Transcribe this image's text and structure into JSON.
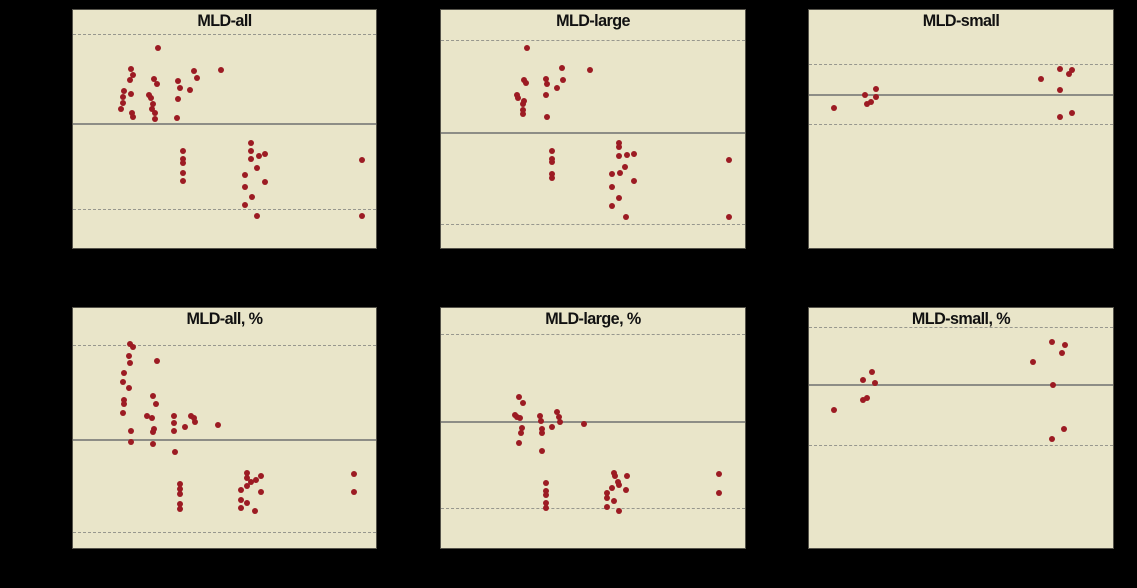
{
  "colors": {
    "canvas_bg": "#000000",
    "panel_bg": "#e9e5c9",
    "panel_border": "#55534a",
    "dot": "#9c1b23",
    "mean_line": "#8d8d86",
    "loa_line": "#97978e",
    "title_text": "#111111"
  },
  "chart_data": {
    "type": "scatter",
    "layout": "2 rows x 3 columns of Bland-Altman style panels",
    "legend": "none",
    "grid": "off",
    "axis_tick_labels_visible": false,
    "lines_meaning": {
      "solid": "mean line",
      "dashed": "upper/lower limit lines"
    },
    "panels": [
      {
        "title": "MLD-all",
        "upper_loa_y_pct": 10.1,
        "mean_y_pct": 47.6,
        "lower_loa_y_pct": 83.8,
        "points_pct": [
          [
            28.1,
            16.1
          ],
          [
            19.2,
            24.7
          ],
          [
            19.9,
            27.2
          ],
          [
            26.7,
            28.9
          ],
          [
            27.8,
            31.0
          ],
          [
            40.0,
            25.6
          ],
          [
            41.0,
            28.5
          ],
          [
            48.9,
            25.4
          ],
          [
            34.7,
            30.0
          ],
          [
            35.2,
            32.6
          ],
          [
            38.7,
            33.5
          ],
          [
            18.7,
            29.6
          ],
          [
            16.8,
            34.0
          ],
          [
            19.2,
            35.1
          ],
          [
            16.4,
            36.5
          ],
          [
            25.0,
            35.8
          ],
          [
            25.8,
            36.8
          ],
          [
            34.5,
            37.5
          ],
          [
            26.5,
            39.6
          ],
          [
            26.1,
            41.4
          ],
          [
            16.5,
            39.0
          ],
          [
            15.7,
            41.4
          ],
          [
            19.6,
            43.2
          ],
          [
            19.9,
            45.1
          ],
          [
            27.2,
            43.2
          ],
          [
            27.0,
            46.0
          ],
          [
            34.3,
            45.5
          ],
          [
            36.2,
            59.4
          ],
          [
            36.2,
            62.6
          ],
          [
            36.2,
            64.3
          ],
          [
            36.2,
            68.5
          ],
          [
            36.2,
            71.7
          ],
          [
            58.9,
            56.0
          ],
          [
            58.9,
            59.4
          ],
          [
            61.3,
            61.3
          ],
          [
            63.5,
            60.5
          ],
          [
            58.9,
            62.6
          ],
          [
            60.8,
            66.4
          ],
          [
            56.9,
            69.2
          ],
          [
            63.3,
            72.2
          ],
          [
            56.7,
            74.4
          ],
          [
            59.1,
            78.5
          ],
          [
            56.7,
            82.1
          ],
          [
            60.8,
            86.5
          ],
          [
            95.3,
            63.2
          ],
          [
            95.3,
            86.5
          ]
        ]
      },
      {
        "title": "MLD-large",
        "upper_loa_y_pct": 12.5,
        "mean_y_pct": 51.1,
        "lower_loa_y_pct": 90.1,
        "points_pct": [
          [
            28.2,
            16.1
          ],
          [
            39.8,
            24.4
          ],
          [
            49.0,
            25.4
          ],
          [
            40.0,
            29.3
          ],
          [
            38.1,
            32.8
          ],
          [
            34.6,
            29.2
          ],
          [
            35.0,
            31.0
          ],
          [
            27.4,
            29.6
          ],
          [
            27.9,
            30.5
          ],
          [
            34.4,
            35.6
          ],
          [
            25.1,
            35.8
          ],
          [
            25.4,
            36.8
          ],
          [
            27.3,
            38.3
          ],
          [
            26.9,
            39.7
          ],
          [
            27.1,
            42.1
          ],
          [
            26.9,
            43.8
          ],
          [
            34.8,
            45.1
          ],
          [
            36.5,
            59.4
          ],
          [
            36.5,
            62.6
          ],
          [
            36.5,
            63.9
          ],
          [
            36.5,
            68.8
          ],
          [
            36.5,
            70.5
          ],
          [
            58.7,
            55.7
          ],
          [
            58.7,
            57.6
          ],
          [
            58.4,
            61.3
          ],
          [
            61.1,
            60.8
          ],
          [
            63.5,
            60.4
          ],
          [
            60.6,
            66.0
          ],
          [
            59.0,
            68.5
          ],
          [
            56.3,
            68.9
          ],
          [
            63.5,
            72.0
          ],
          [
            56.1,
            74.3
          ],
          [
            58.7,
            78.9
          ],
          [
            56.3,
            82.4
          ],
          [
            61.0,
            86.8
          ],
          [
            94.9,
            62.9
          ],
          [
            94.9,
            86.8
          ]
        ]
      },
      {
        "title": "MLD-small",
        "upper_loa_y_pct": 22.6,
        "mean_y_pct": 35.1,
        "lower_loa_y_pct": 47.9,
        "points_pct": [
          [
            8.3,
            41.0
          ],
          [
            18.3,
            35.8
          ],
          [
            21.9,
            33.3
          ],
          [
            22.2,
            36.5
          ],
          [
            19.0,
            39.6
          ],
          [
            20.3,
            38.6
          ],
          [
            76.4,
            29.2
          ],
          [
            82.7,
            24.6
          ],
          [
            86.5,
            25.0
          ],
          [
            85.4,
            26.8
          ],
          [
            82.7,
            33.8
          ],
          [
            86.4,
            43.2
          ],
          [
            82.7,
            45.1
          ]
        ]
      },
      {
        "title": "MLD-all, %",
        "upper_loa_y_pct": 15.6,
        "mean_y_pct": 54.5,
        "lower_loa_y_pct": 93.4,
        "points_pct": [
          [
            18.8,
            15.0
          ],
          [
            19.8,
            16.4
          ],
          [
            18.5,
            19.8
          ],
          [
            18.8,
            23.1
          ],
          [
            27.8,
            22.1
          ],
          [
            16.8,
            27.0
          ],
          [
            16.6,
            31.0
          ],
          [
            18.5,
            33.4
          ],
          [
            16.8,
            38.2
          ],
          [
            16.8,
            40.2
          ],
          [
            16.6,
            43.6
          ],
          [
            26.5,
            36.7
          ],
          [
            27.4,
            39.9
          ],
          [
            24.5,
            44.9
          ],
          [
            26.1,
            45.9
          ],
          [
            26.7,
            50.5
          ],
          [
            26.5,
            51.8
          ],
          [
            26.5,
            56.6
          ],
          [
            33.4,
            45.1
          ],
          [
            33.4,
            48.1
          ],
          [
            33.4,
            51.2
          ],
          [
            33.5,
            60.0
          ],
          [
            37.0,
            49.7
          ],
          [
            38.9,
            45.1
          ],
          [
            39.8,
            46.0
          ],
          [
            40.1,
            47.7
          ],
          [
            48.0,
            48.8
          ],
          [
            19.0,
            51.2
          ],
          [
            19.0,
            55.9
          ],
          [
            35.4,
            73.4
          ],
          [
            35.4,
            75.4
          ],
          [
            35.4,
            77.7
          ],
          [
            35.4,
            81.6
          ],
          [
            35.4,
            83.6
          ],
          [
            57.3,
            68.6
          ],
          [
            57.3,
            70.9
          ],
          [
            62.2,
            69.9
          ],
          [
            58.9,
            72.3
          ],
          [
            60.3,
            71.6
          ],
          [
            57.3,
            74.0
          ],
          [
            55.3,
            75.8
          ],
          [
            61.9,
            76.5
          ],
          [
            55.3,
            79.8
          ],
          [
            57.3,
            81.1
          ],
          [
            55.3,
            83.3
          ],
          [
            60.0,
            84.6
          ],
          [
            92.8,
            69.3
          ],
          [
            92.8,
            76.5
          ]
        ]
      },
      {
        "title": "MLD-large, %",
        "upper_loa_y_pct": 10.7,
        "mean_y_pct": 47.2,
        "lower_loa_y_pct": 83.5,
        "points_pct": [
          [
            25.8,
            36.9
          ],
          [
            26.9,
            39.5
          ],
          [
            24.4,
            44.4
          ],
          [
            25.1,
            45.3
          ],
          [
            26.0,
            46.0
          ],
          [
            26.5,
            50.1
          ],
          [
            26.2,
            52.2
          ],
          [
            25.8,
            56.3
          ],
          [
            32.7,
            45.1
          ],
          [
            33.0,
            47.1
          ],
          [
            33.3,
            50.4
          ],
          [
            33.3,
            51.9
          ],
          [
            33.3,
            59.7
          ],
          [
            38.1,
            43.3
          ],
          [
            38.7,
            45.6
          ],
          [
            39.0,
            47.4
          ],
          [
            36.6,
            49.4
          ],
          [
            46.9,
            48.4
          ],
          [
            34.6,
            73.0
          ],
          [
            34.6,
            76.1
          ],
          [
            34.6,
            78.1
          ],
          [
            34.6,
            81.1
          ],
          [
            34.6,
            83.3
          ],
          [
            56.8,
            68.6
          ],
          [
            57.1,
            70.2
          ],
          [
            61.1,
            69.9
          ],
          [
            58.2,
            72.3
          ],
          [
            58.7,
            73.6
          ],
          [
            56.1,
            75.0
          ],
          [
            60.8,
            75.8
          ],
          [
            54.7,
            77.2
          ],
          [
            54.7,
            79.2
          ],
          [
            56.8,
            80.5
          ],
          [
            54.7,
            82.9
          ],
          [
            58.7,
            84.6
          ],
          [
            91.5,
            69.3
          ],
          [
            91.5,
            77.0
          ]
        ]
      },
      {
        "title": "MLD-small, %",
        "upper_loa_y_pct": 8.1,
        "mean_y_pct": 31.8,
        "lower_loa_y_pct": 56.9,
        "points_pct": [
          [
            8.1,
            42.6
          ],
          [
            17.6,
            29.9
          ],
          [
            20.8,
            26.6
          ],
          [
            21.7,
            31.4
          ],
          [
            17.8,
            38.2
          ],
          [
            19.0,
            37.6
          ],
          [
            73.7,
            22.4
          ],
          [
            79.9,
            14.3
          ],
          [
            84.2,
            15.6
          ],
          [
            83.2,
            18.7
          ],
          [
            80.2,
            32.0
          ],
          [
            83.8,
            50.5
          ],
          [
            79.9,
            54.5
          ]
        ]
      }
    ]
  }
}
